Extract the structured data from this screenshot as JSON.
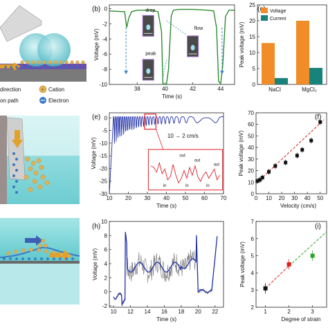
{
  "panel_labels": {
    "b": "(b)",
    "c": "(c)",
    "e": "(e)",
    "f": "(f)",
    "h": "(h)",
    "i": "(i)"
  },
  "left_strip": {
    "legend": {
      "direction": "direction",
      "cation": "Cation",
      "electron": "Electron",
      "path": "on path"
    },
    "colors": {
      "droplet": "#5fc6d0",
      "cation": "#e0b155",
      "electron": "#3b79c9",
      "arrow": "#e2a12a",
      "water": "#7fd6d8"
    }
  },
  "chart_data": [
    {
      "id": "b",
      "type": "line",
      "xlabel": "Time (s)",
      "ylabel": "Voltage (mV)",
      "xlim": [
        36,
        45
      ],
      "ylim": [
        -10,
        0.5
      ],
      "xticks": [
        38,
        40,
        42,
        44
      ],
      "yticks": [
        0,
        -2,
        -4,
        -6,
        -8,
        -10
      ],
      "color": "#2e8b2e",
      "x": [
        36,
        37.1,
        37.25,
        37.4,
        37.6,
        38,
        39,
        39.5,
        39.75,
        39.85,
        40,
        40.1,
        40.25,
        40.45,
        40.6,
        41,
        42,
        43,
        43.5,
        43.7,
        43.85,
        44,
        44.15,
        44.35,
        44.6,
        45
      ],
      "y": [
        -0.3,
        -0.4,
        -2.5,
        -1.2,
        -0.4,
        -0.2,
        -0.2,
        -0.4,
        -3,
        -9.9,
        -10,
        -10,
        -8,
        -1,
        -0.2,
        -0.1,
        -0.1,
        -0.2,
        -0.3,
        -2.5,
        -9.6,
        -9.9,
        -7.5,
        -1,
        -0.2,
        -0.2
      ],
      "annotations": {
        "drop": "drop",
        "flow": "flow",
        "peak": "peak"
      }
    },
    {
      "id": "c",
      "type": "bar",
      "ylabel": "Peak voltage (mV)",
      "categories": [
        "NaCl",
        "MgCl₂"
      ],
      "ylim": [
        0,
        25
      ],
      "yticks": [
        0,
        5,
        10,
        15,
        20,
        25
      ],
      "series": [
        {
          "name": "Voltage",
          "values": [
            13,
            20
          ],
          "color": "#f28c28"
        },
        {
          "name": "Current",
          "values": [
            2,
            5.2
          ],
          "color": "#17837a"
        }
      ]
    },
    {
      "id": "e",
      "type": "line",
      "xlabel": "Time (s)",
      "ylabel": "Voltage (mV)",
      "xlim": [
        10,
        70
      ],
      "ylim": [
        -30,
        2
      ],
      "xticks": [
        10,
        20,
        30,
        40,
        50,
        60,
        70
      ],
      "yticks": [
        0,
        -5,
        -10,
        -15,
        -20,
        -25,
        -30
      ],
      "color": "#1f2fa6",
      "speed_label": "10 → 2 cm/s",
      "inset": {
        "color": "#e0202a",
        "out": "out",
        "in": "in"
      }
    },
    {
      "id": "f",
      "type": "scatter",
      "xlabel": "Velocity (cm/s)",
      "ylabel": "Peak voltage (mV)",
      "xlim": [
        0,
        55
      ],
      "ylim": [
        0,
        70
      ],
      "xticks": [
        0,
        10,
        20,
        30,
        40,
        50
      ],
      "yticks": [
        0,
        10,
        20,
        30,
        40,
        50,
        60,
        70
      ],
      "x": [
        1,
        3,
        5,
        10,
        15,
        23,
        32,
        36,
        43,
        50
      ],
      "y": [
        11,
        12,
        14,
        19,
        24,
        27,
        33,
        38,
        46,
        62
      ],
      "color": "#111111",
      "fit_color": "#d42020"
    },
    {
      "id": "h",
      "type": "line",
      "xlabel": "Time (s)",
      "ylabel": "Voltage (mV)",
      "xlim": [
        9.5,
        23
      ],
      "ylim": [
        -2.2,
        10
      ],
      "xticks": [
        10,
        12,
        14,
        16,
        18,
        20,
        22
      ],
      "yticks": [
        -2,
        0,
        2,
        4,
        6,
        8,
        10
      ],
      "color": "#1f2fa6",
      "noise_color": "#777777"
    },
    {
      "id": "i",
      "type": "scatter",
      "xlabel": "Degree of strain",
      "ylabel": "Peak voltage (mV)",
      "xlim": [
        0.6,
        3.6
      ],
      "ylim": [
        2,
        7
      ],
      "xticks": [
        1,
        2,
        3
      ],
      "yticks": [
        2,
        3,
        4,
        5,
        6,
        7
      ],
      "points": [
        {
          "x": 1,
          "y": 3.1,
          "color": "#111111"
        },
        {
          "x": 2,
          "y": 4.5,
          "color": "#e02020"
        },
        {
          "x": 3,
          "y": 5.0,
          "color": "#2aa52a"
        }
      ],
      "fit_colors": [
        "#e02020",
        "#2aa52a"
      ]
    }
  ]
}
